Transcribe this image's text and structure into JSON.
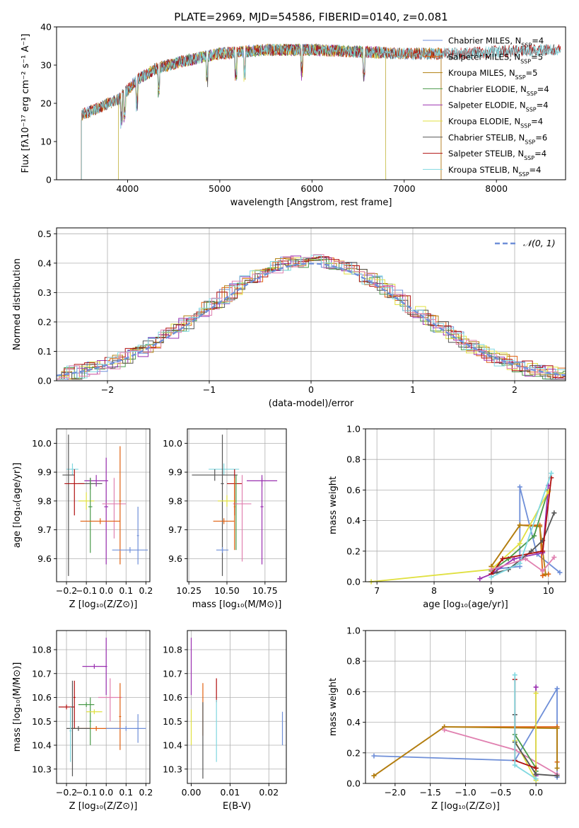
{
  "chart_data": [
    {
      "id": "spectrum",
      "type": "line",
      "title": "PLATE=2969, MJD=54586, FIBERID=0140, z=0.081",
      "xlabel": "wavelength [Angstrom, rest frame]",
      "ylabel": "Flux [fλ10⁻¹⁷ erg cm⁻² s⁻¹ A⁻¹]",
      "xlim": [
        3230,
        8750
      ],
      "ylim": [
        0,
        40
      ],
      "xticks": [
        4000,
        5000,
        6000,
        7000,
        8000
      ],
      "yticks": [
        0,
        10,
        20,
        30,
        40
      ],
      "grid": false,
      "legend_position": "top-right",
      "continuum": {
        "x": [
          3500,
          3700,
          3900,
          4100,
          4300,
          4600,
          5000,
          5500,
          6000,
          6500,
          7000,
          7500,
          8000,
          8500,
          8700
        ],
        "y": [
          17,
          19,
          21,
          26,
          29,
          31,
          33,
          34,
          34,
          33.5,
          33,
          33,
          33.5,
          34,
          34
        ]
      },
      "series": [
        {
          "name": "Chabrier MILES, N_SSP=4",
          "color": "#6f8fd8",
          "x_start": 3500,
          "x_end": 7400
        },
        {
          "name": "Salpeter MILES, N_SSP=5",
          "color": "#e06010",
          "x_start": 3500,
          "x_end": 7400
        },
        {
          "name": "Kroupa MILES, N_SSP=5",
          "color": "#b08010",
          "x_start": 3500,
          "x_end": 7400
        },
        {
          "name": "Chabrier ELODIE, N_SSP=4",
          "color": "#4a9a4a",
          "x_start": 3900,
          "x_end": 6800
        },
        {
          "name": "Salpeter ELODIE, N_SSP=4",
          "color": "#9a30b0",
          "x_start": 3900,
          "x_end": 6800
        },
        {
          "name": "Kroupa ELODIE, N_SSP=4",
          "color": "#e0e040",
          "x_start": 3900,
          "x_end": 6800
        },
        {
          "name": "Chabrier STELIB, N_SSP=6",
          "color": "#555555",
          "x_start": 3500,
          "x_end": 8700
        },
        {
          "name": "Salpeter STELIB, N_SSP=4",
          "color": "#b01010",
          "x_start": 3500,
          "x_end": 8700
        },
        {
          "name": "Kroupa STELIB, N_SSP=4",
          "color": "#80d8e0",
          "x_start": 3500,
          "x_end": 8700
        }
      ]
    },
    {
      "id": "residuals",
      "type": "histogram",
      "xlabel": "(data-model)/error",
      "ylabel": "Normed distribution",
      "xlim": [
        -2.5,
        2.5
      ],
      "ylim": [
        0,
        0.52
      ],
      "xticks": [
        -2,
        -1,
        0,
        1,
        2
      ],
      "yticks": [
        0.0,
        0.1,
        0.2,
        0.3,
        0.4,
        0.5
      ],
      "grid": true,
      "legend_position": "top-right",
      "reference_curve": {
        "name": "𝒩(0, 1)",
        "color": "#6f8fd8",
        "style": "dashed"
      },
      "series_colors": [
        "#6f8fd8",
        "#e06010",
        "#b08010",
        "#4a9a4a",
        "#9a30b0",
        "#e0e040",
        "#555555",
        "#b01010",
        "#80d8e0",
        "#e080b0"
      ]
    },
    {
      "id": "age-vs-Z",
      "type": "errorbar",
      "xlabel": "Z [log₁₀(Z/Z⊙)]",
      "ylabel": "age  [log₁₀(age/yr)]",
      "xlim": [
        -0.25,
        0.22
      ],
      "ylim": [
        9.52,
        10.05
      ],
      "xticks": [
        -0.2,
        -0.1,
        0.0,
        0.1,
        0.2
      ],
      "yticks": [
        9.6,
        9.7,
        9.8,
        9.9,
        10.0
      ],
      "grid": true,
      "points": [
        {
          "color": "#80d8e0",
          "x": -0.17,
          "y": 9.91,
          "xerr": 0.03,
          "yerr": [
            0.02,
            0.02
          ]
        },
        {
          "color": "#555555",
          "x": -0.19,
          "y": 9.89,
          "xerr": 0.03,
          "yerr": [
            0.35,
            0.14
          ]
        },
        {
          "color": "#555555",
          "x": -0.08,
          "y": 9.86,
          "xerr": 0.06,
          "yerr": [
            0.02,
            0.02
          ]
        },
        {
          "color": "#b01010",
          "x": -0.16,
          "y": 9.86,
          "xerr": 0.05,
          "yerr": [
            0.11,
            0.05
          ]
        },
        {
          "color": "#9a30b0",
          "x": -0.05,
          "y": 9.87,
          "xerr": 0.06,
          "yerr": [
            0.02,
            0.02
          ]
        },
        {
          "color": "#9a30b0",
          "x": 0.0,
          "y": 9.78,
          "xerr": 0.01,
          "yerr": [
            0.2,
            0.17
          ]
        },
        {
          "color": "#e0e040",
          "x": -0.1,
          "y": 9.8,
          "xerr": 0.04,
          "yerr": [
            0.03,
            0.03
          ]
        },
        {
          "color": "#4a9a4a",
          "x": -0.08,
          "y": 9.78,
          "xerr": 0.01,
          "yerr": [
            0.16,
            0.1
          ]
        },
        {
          "color": "#e080b0",
          "x": 0.04,
          "y": 9.79,
          "xerr": 0.06,
          "yerr": [
            0.12,
            0.09
          ]
        },
        {
          "color": "#e06010",
          "x": -0.03,
          "y": 9.73,
          "xerr": 0.1,
          "yerr": [
            0.01,
            0.01
          ]
        },
        {
          "color": "#e06010",
          "x": 0.07,
          "y": 9.8,
          "xerr": 0.005,
          "yerr": [
            0.22,
            0.19
          ]
        },
        {
          "color": "#6f8fd8",
          "x": 0.12,
          "y": 9.63,
          "xerr": 0.09,
          "yerr": [
            0.01,
            0.01
          ]
        },
        {
          "color": "#6f8fd8",
          "x": 0.16,
          "y": 9.68,
          "xerr": 0.005,
          "yerr": [
            0.1,
            0.1
          ]
        }
      ]
    },
    {
      "id": "age-vs-mass",
      "type": "errorbar",
      "xlabel": "mass [log₁₀(M/M⊙)]",
      "ylabel": "",
      "xlim": [
        10.24,
        10.89
      ],
      "ylim": [
        9.52,
        10.05
      ],
      "xticks": [
        10.25,
        10.5,
        10.75
      ],
      "yticks": [
        9.6,
        9.7,
        9.8,
        9.9,
        10.0
      ],
      "grid": true,
      "points": [
        {
          "color": "#80d8e0",
          "x": 10.48,
          "y": 9.91,
          "xerr": 0.1,
          "yerr": [
            0.02,
            0.02
          ]
        },
        {
          "color": "#555555",
          "x": 10.42,
          "y": 9.89,
          "xerr": 0.15,
          "yerr": [
            0.02,
            0.02
          ]
        },
        {
          "color": "#555555",
          "x": 10.47,
          "y": 9.86,
          "xerr": 0.01,
          "yerr": [
            0.32,
            0.17
          ]
        },
        {
          "color": "#b01010",
          "x": 10.55,
          "y": 9.86,
          "xerr": 0.05,
          "yerr": [
            0.11,
            0.05
          ]
        },
        {
          "color": "#9a30b0",
          "x": 10.73,
          "y": 9.87,
          "xerr": 0.1,
          "yerr": [
            0.02,
            0.02
          ]
        },
        {
          "color": "#9a30b0",
          "x": 10.73,
          "y": 9.78,
          "xerr": 0.01,
          "yerr": [
            0.2,
            0.1
          ]
        },
        {
          "color": "#e0e040",
          "x": 10.5,
          "y": 9.8,
          "xerr": 0.06,
          "yerr": [
            0.02,
            0.02
          ]
        },
        {
          "color": "#4a9a4a",
          "x": 10.56,
          "y": 9.79,
          "xerr": 0.01,
          "yerr": [
            0.16,
            0.1
          ]
        },
        {
          "color": "#e080b0",
          "x": 10.6,
          "y": 9.79,
          "xerr": 0.06,
          "yerr": [
            0.2,
            0.1
          ]
        },
        {
          "color": "#e06010",
          "x": 10.48,
          "y": 9.73,
          "xerr": 0.07,
          "yerr": [
            0.01,
            0.01
          ]
        },
        {
          "color": "#e06010",
          "x": 10.55,
          "y": 9.78,
          "xerr": 0.005,
          "yerr": [
            0.15,
            0.1
          ]
        },
        {
          "color": "#6f8fd8",
          "x": 10.47,
          "y": 9.63,
          "xerr": 0.04,
          "yerr": [
            0.01,
            0.01
          ]
        }
      ]
    },
    {
      "id": "massweight-vs-age",
      "type": "line",
      "xlabel": "age  [log₁₀(age/yr)]",
      "ylabel": "mass weight",
      "xlim": [
        6.8,
        10.3
      ],
      "ylim": [
        0,
        1.0
      ],
      "xticks": [
        7,
        8,
        9,
        10
      ],
      "yticks": [
        0.0,
        0.2,
        0.4,
        0.6,
        0.8,
        1.0
      ],
      "grid": true,
      "series": [
        {
          "color": "#6f8fd8",
          "x": [
            9.0,
            9.5,
            9.5,
            9.8,
            10.2
          ],
          "y": [
            0.08,
            0.1,
            0.62,
            0.18,
            0.06
          ]
        },
        {
          "color": "#e06010",
          "x": [
            9.0,
            9.5,
            9.85,
            9.9,
            10.0
          ],
          "y": [
            0.1,
            0.37,
            0.37,
            0.04,
            0.05
          ]
        },
        {
          "color": "#b08010",
          "x": [
            9.0,
            9.5,
            9.85,
            9.95
          ],
          "y": [
            0.1,
            0.37,
            0.36,
            0.05
          ]
        },
        {
          "color": "#4a9a4a",
          "x": [
            9.0,
            9.3,
            9.75,
            10.0
          ],
          "y": [
            0.07,
            0.15,
            0.3,
            0.6
          ]
        },
        {
          "color": "#9a30b0",
          "x": [
            8.8,
            9.0,
            9.4,
            9.9,
            10.0
          ],
          "y": [
            0.02,
            0.05,
            0.15,
            0.19,
            0.63
          ]
        },
        {
          "color": "#e0e040",
          "x": [
            6.9,
            9.0,
            9.5,
            10.0
          ],
          "y": [
            0.0,
            0.08,
            0.25,
            0.59
          ]
        },
        {
          "color": "#555555",
          "x": [
            9.0,
            9.1,
            9.3,
            9.7,
            9.9,
            10.1
          ],
          "y": [
            0.05,
            0.06,
            0.08,
            0.2,
            0.27,
            0.45
          ]
        },
        {
          "color": "#b01010",
          "x": [
            9.0,
            9.2,
            9.9,
            10.05
          ],
          "y": [
            0.05,
            0.15,
            0.2,
            0.68
          ]
        },
        {
          "color": "#80d8e0",
          "x": [
            9.0,
            9.5,
            10.05
          ],
          "y": [
            0.03,
            0.12,
            0.71
          ]
        },
        {
          "color": "#e080b0",
          "x": [
            9.0,
            9.6,
            9.9,
            10.1
          ],
          "y": [
            0.08,
            0.15,
            0.07,
            0.16
          ]
        }
      ]
    },
    {
      "id": "mass-vs-Z",
      "type": "errorbar",
      "xlabel": "Z [log₁₀(Z/Z⊙)]",
      "ylabel": "mass [log₁₀(M/M⊙)]",
      "xlim": [
        -0.25,
        0.22
      ],
      "ylim": [
        10.24,
        10.88
      ],
      "xticks": [
        -0.2,
        -0.1,
        0.0,
        0.1,
        0.2
      ],
      "yticks": [
        10.3,
        10.4,
        10.5,
        10.6,
        10.7,
        10.8
      ],
      "grid": true,
      "points": [
        {
          "color": "#9a30b0",
          "x": -0.06,
          "y": 10.73,
          "xerr": 0.06,
          "yerr": [
            0.01,
            0.01
          ]
        },
        {
          "color": "#9a30b0",
          "x": 0.0,
          "y": 10.73,
          "xerr": 0.005,
          "yerr": [
            0.12,
            0.12
          ]
        },
        {
          "color": "#b01010",
          "x": -0.2,
          "y": 10.56,
          "xerr": 0.04,
          "yerr": [
            0.01,
            0.01
          ]
        },
        {
          "color": "#b01010",
          "x": -0.16,
          "y": 10.6,
          "xerr": 0.005,
          "yerr": [
            0.13,
            0.07
          ]
        },
        {
          "color": "#e080b0",
          "x": 0.02,
          "y": 10.6,
          "xerr": 0.06,
          "yerr": [
            0.1,
            0.08
          ]
        },
        {
          "color": "#4a9a4a",
          "x": -0.1,
          "y": 10.57,
          "xerr": 0.04,
          "yerr": [
            0.01,
            0.01
          ]
        },
        {
          "color": "#4a9a4a",
          "x": -0.08,
          "y": 10.5,
          "xerr": 0.005,
          "yerr": [
            0.1,
            0.1
          ]
        },
        {
          "color": "#e0e040",
          "x": -0.06,
          "y": 10.54,
          "xerr": 0.04,
          "yerr": [
            0.01,
            0.01
          ]
        },
        {
          "color": "#e06010",
          "x": 0.07,
          "y": 10.52,
          "xerr": 0.005,
          "yerr": [
            0.14,
            0.14
          ]
        },
        {
          "color": "#e06010",
          "x": -0.05,
          "y": 10.47,
          "xerr": 0.12,
          "yerr": [
            0.01,
            0.01
          ]
        },
        {
          "color": "#555555",
          "x": -0.17,
          "y": 10.47,
          "xerr": 0.01,
          "yerr": [
            0.2,
            0.2
          ]
        },
        {
          "color": "#555555",
          "x": -0.14,
          "y": 10.47,
          "xerr": 0.06,
          "yerr": [
            0.01,
            0.01
          ]
        },
        {
          "color": "#80d8e0",
          "x": -0.18,
          "y": 10.46,
          "xerr": 0.005,
          "yerr": [
            0.13,
            0.1
          ]
        },
        {
          "color": "#6f8fd8",
          "x": 0.1,
          "y": 10.47,
          "xerr": 0.1,
          "yerr": [
            0.01,
            0.01
          ]
        },
        {
          "color": "#6f8fd8",
          "x": 0.16,
          "y": 10.47,
          "xerr": 0.005,
          "yerr": [
            0.06,
            0.06
          ]
        }
      ]
    },
    {
      "id": "mass-vs-EBV",
      "type": "errorbar",
      "xlabel": "E(B-V)",
      "ylabel": "",
      "xlim": [
        -0.001,
        0.0245
      ],
      "ylim": [
        10.24,
        10.88
      ],
      "xticks": [
        0.0,
        0.01,
        0.02
      ],
      "yticks": [
        10.3,
        10.4,
        10.5,
        10.6,
        10.7,
        10.8
      ],
      "grid": true,
      "points": [
        {
          "color": "#9a30b0",
          "x": 0.0,
          "y": 10.73,
          "xerr": 0,
          "yerr": [
            0.12,
            0.12
          ]
        },
        {
          "color": "#e0e040",
          "x": 0.0,
          "y": 10.47,
          "xerr": 0,
          "yerr": [
            0.07,
            0.08
          ]
        },
        {
          "color": "#e06010",
          "x": 0.003,
          "y": 10.55,
          "xerr": 0,
          "yerr": [
            0.11,
            0.11
          ]
        },
        {
          "color": "#555555",
          "x": 0.003,
          "y": 10.42,
          "xerr": 0,
          "yerr": [
            0.16,
            0.16
          ]
        },
        {
          "color": "#b01010",
          "x": 0.0065,
          "y": 10.63,
          "xerr": 0,
          "yerr": [
            0.05,
            0.05
          ]
        },
        {
          "color": "#80d8e0",
          "x": 0.0065,
          "y": 10.46,
          "xerr": 0,
          "yerr": [
            0.13,
            0.13
          ]
        },
        {
          "color": "#6f8fd8",
          "x": 0.0235,
          "y": 10.47,
          "xerr": 0,
          "yerr": [
            0.07,
            0.07
          ]
        }
      ]
    },
    {
      "id": "massweight-vs-Z",
      "type": "line",
      "xlabel": "Z [log₁₀(Z/Z⊙)]",
      "ylabel": "mass weight",
      "xlim": [
        -2.42,
        0.42
      ],
      "ylim": [
        0,
        1.0
      ],
      "xticks": [
        -2.0,
        -1.5,
        -1.0,
        -0.5,
        0.0
      ],
      "yticks": [
        0.0,
        0.2,
        0.4,
        0.6,
        0.8,
        1.0
      ],
      "grid": true,
      "series": [
        {
          "color": "#6f8fd8",
          "x": [
            -2.3,
            -0.3,
            0.3,
            0.3
          ],
          "y": [
            0.18,
            0.15,
            0.62,
            0.04
          ]
        },
        {
          "color": "#e06010",
          "x": [
            -2.3,
            -1.3,
            0.3,
            0.3
          ],
          "y": [
            0.05,
            0.37,
            0.37,
            0.14
          ]
        },
        {
          "color": "#b08010",
          "x": [
            -2.3,
            -1.3,
            0.3,
            0.3
          ],
          "y": [
            0.05,
            0.37,
            0.36,
            0.1
          ]
        },
        {
          "color": "#e080b0",
          "x": [
            -1.3,
            -0.3,
            0.3
          ],
          "y": [
            0.35,
            0.22,
            0.06
          ]
        },
        {
          "color": "#4a9a4a",
          "x": [
            -0.3,
            0.0,
            0.0
          ],
          "y": [
            0.32,
            0.1,
            0.08
          ]
        },
        {
          "color": "#9a30b0",
          "x": [
            0.0,
            0.0
          ],
          "y": [
            0.63,
            0.05
          ]
        },
        {
          "color": "#e0e040",
          "x": [
            -0.3,
            0.0,
            0.0
          ],
          "y": [
            0.28,
            0.02,
            0.59
          ]
        },
        {
          "color": "#555555",
          "x": [
            -0.3,
            -0.3,
            0.0,
            0.3
          ],
          "y": [
            0.45,
            0.27,
            0.06,
            0.05
          ]
        },
        {
          "color": "#b01010",
          "x": [
            -0.3,
            -0.3,
            0.0
          ],
          "y": [
            0.68,
            0.15,
            0.1
          ]
        },
        {
          "color": "#80d8e0",
          "x": [
            -0.3,
            -0.3,
            0.0
          ],
          "y": [
            0.71,
            0.12,
            0.03
          ]
        }
      ]
    }
  ]
}
